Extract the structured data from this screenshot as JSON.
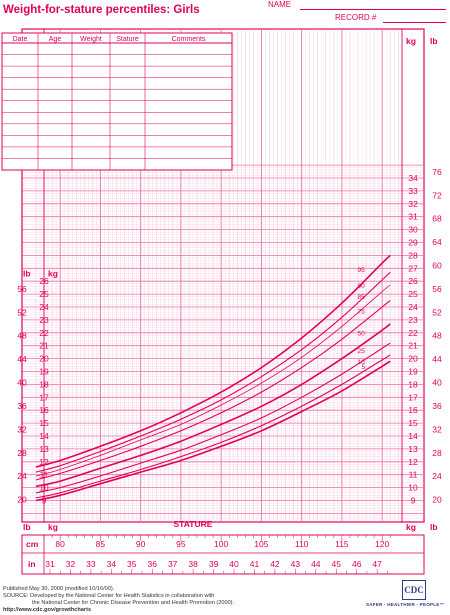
{
  "header": {
    "title": "Weight-for-stature percentiles: Girls",
    "name_label": "NAME",
    "record_label": "RECORD #"
  },
  "comment_table": {
    "columns": [
      "Date",
      "Age",
      "Weight",
      "Stature",
      "Comments"
    ],
    "row_count": 11
  },
  "axis_units": {
    "lb": "lb",
    "kg": "kg",
    "cm": "cm",
    "in": "in"
  },
  "colors": {
    "primary": "#e0005a",
    "grid_light": "#f7b7cf",
    "grid_mid": "#ec6f9f",
    "cdc_blue": "#2d3c8c"
  },
  "chart_data": {
    "type": "line",
    "xlabel": "STATURE",
    "x_unit": "cm",
    "x_secondary_unit": "in",
    "y_unit": "kg",
    "y_secondary_unit": "lb",
    "xlim": [
      77,
      122
    ],
    "ylim": [
      7,
      28
    ],
    "x_ticks_cm": [
      80,
      85,
      90,
      95,
      100,
      105,
      110,
      115,
      120
    ],
    "x_ticks_in": [
      31,
      32,
      33,
      34,
      35,
      36,
      37,
      38,
      39,
      40,
      41,
      42,
      43,
      44,
      45,
      46,
      47
    ],
    "y_ticks_kg_left": [
      9,
      10,
      11,
      12,
      13,
      14,
      15,
      16,
      17,
      18,
      19,
      20,
      21,
      22,
      23,
      24,
      25,
      26
    ],
    "y_ticks_lb_left": [
      20,
      24,
      28,
      32,
      36,
      40,
      44,
      48,
      52,
      56
    ],
    "y_ticks_kg_right": [
      9,
      10,
      11,
      12,
      13,
      14,
      15,
      16,
      17,
      18,
      19,
      20,
      21,
      22,
      23,
      24,
      25,
      26,
      27,
      28,
      29,
      30,
      31,
      32,
      33,
      34
    ],
    "y_ticks_lb_right": [
      20,
      24,
      28,
      32,
      36,
      40,
      44,
      48,
      52,
      56,
      60,
      64,
      68,
      72,
      76
    ],
    "x": [
      77,
      80,
      85,
      90,
      95,
      100,
      105,
      110,
      115,
      120,
      121
    ],
    "series": [
      {
        "name": "95",
        "label_x": 118.5,
        "values": [
          11.6,
          12.1,
          13.2,
          14.4,
          15.8,
          17.4,
          19.3,
          21.6,
          24.3,
          27.4,
          28.0
        ]
      },
      {
        "name": "90",
        "label_x": 118.5,
        "values": [
          11.2,
          11.7,
          12.8,
          14.0,
          15.3,
          16.8,
          18.6,
          20.7,
          23.2,
          26.1,
          26.7
        ]
      },
      {
        "name": "85",
        "label_x": 118.5,
        "values": [
          10.9,
          11.4,
          12.5,
          13.7,
          14.9,
          16.4,
          18.1,
          20.1,
          22.5,
          25.2,
          25.7
        ]
      },
      {
        "name": "75",
        "label_x": 118.5,
        "values": [
          10.6,
          11.1,
          12.1,
          13.2,
          14.4,
          15.8,
          17.4,
          19.3,
          21.5,
          24.0,
          24.5
        ]
      },
      {
        "name": "50",
        "label_x": 118.5,
        "values": [
          10.1,
          10.5,
          11.5,
          12.5,
          13.6,
          14.9,
          16.3,
          18.0,
          20.0,
          22.2,
          22.7
        ]
      },
      {
        "name": "25",
        "label_x": 118.5,
        "values": [
          9.6,
          10.0,
          10.9,
          11.9,
          12.9,
          14.1,
          15.4,
          17.0,
          18.8,
          20.8,
          21.2
        ]
      },
      {
        "name": "10",
        "label_x": 118.5,
        "values": [
          9.2,
          9.6,
          10.5,
          11.4,
          12.4,
          13.5,
          14.8,
          16.3,
          18.0,
          19.9,
          20.3
        ]
      },
      {
        "name": "5",
        "label_x": 118.8,
        "values": [
          9.0,
          9.4,
          10.3,
          11.2,
          12.1,
          13.2,
          14.4,
          15.9,
          17.5,
          19.4,
          19.8
        ]
      }
    ]
  },
  "footer": {
    "published": "Published May 30, 2000 (modified 10/16/00).",
    "source_line1": "SOURCE: Developed by the National Center for Health Statistics in collaboration with",
    "source_line2": "the National Center for Chronic Disease Prevention and Health Promotion (2000).",
    "url": "http://www.cdc.gov/growthcharts",
    "logo_text": "CDC",
    "tagline": "SAFER · HEALTHIER · PEOPLE™"
  }
}
